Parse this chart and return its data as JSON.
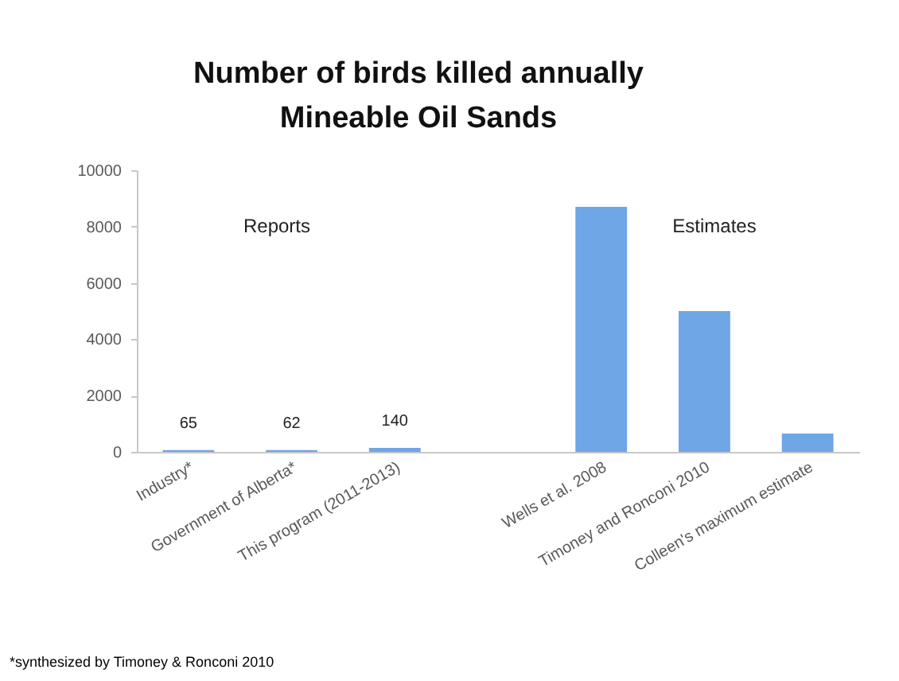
{
  "chart_data": {
    "type": "bar",
    "title": "Number of birds killed annually\nMineable Oil Sands",
    "categories": [
      "Industry*",
      "Government of Alberta*",
      "This program (2011-2013)",
      null,
      "Wells et al. 2008",
      "Timoney and Ronconi 2010",
      "Colleen's maximum estimate"
    ],
    "values": [
      65,
      62,
      140,
      null,
      8700,
      5000,
      650
    ],
    "value_labels": [
      "65",
      "62",
      "140",
      null,
      null,
      null,
      null
    ],
    "color": "#6ea6e6",
    "ylim": [
      0,
      10000
    ],
    "yticks": [
      0,
      2000,
      4000,
      6000,
      8000,
      10000
    ],
    "grid": false,
    "annotations": [
      "Reports",
      "Estimates",
      "*synthesized by Timoney & Ronconi 2010"
    ]
  }
}
